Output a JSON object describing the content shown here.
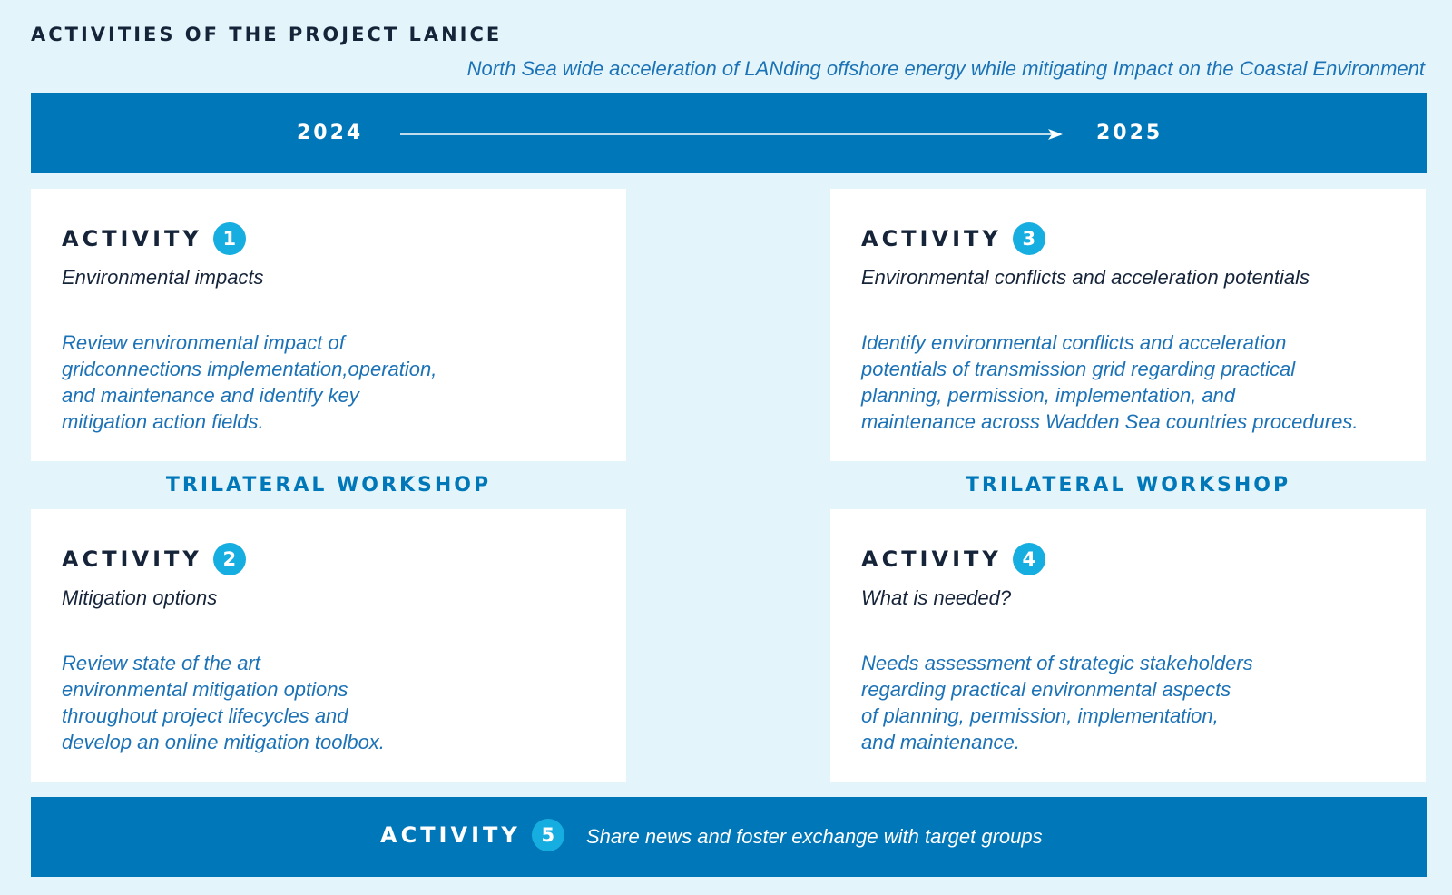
{
  "header": {
    "title": "ACTIVITIES OF THE PROJECT LANICE",
    "subtitle": "North Sea wide acceleration of LANding offshore energy while mitigating Impact on the Coastal Environment"
  },
  "timeline": {
    "start_year": "2024",
    "end_year": "2025"
  },
  "activities": [
    {
      "label": "ACTIVITY",
      "number": "1",
      "title": "Environmental impacts",
      "description": "Review environmental impact of\ngridconnections implementation,operation,\nand maintenance and identify key\nmitigation action fields."
    },
    {
      "label": "ACTIVITY",
      "number": "2",
      "title": "Mitigation options",
      "description": "Review state of the art\nenvironmental mitigation options\nthroughout project lifecycles and\ndevelop an online mitigation toolbox."
    },
    {
      "label": "ACTIVITY",
      "number": "3",
      "title": "Environmental conflicts and acceleration potentials",
      "description": "Identify environmental conflicts and acceleration\npotentials of transmission grid regarding practical\nplanning, permission, implementation, and\nmaintenance across Wadden Sea countries procedures."
    },
    {
      "label": "ACTIVITY",
      "number": "4",
      "title": "What is needed?",
      "description": "Needs assessment of strategic stakeholders\nregarding practical environmental aspects\nof planning, permission, implementation,\nand maintenance."
    },
    {
      "label": "ACTIVITY",
      "number": "5",
      "title": "Share news and foster exchange with target groups"
    }
  ],
  "workshops": {
    "left": "TRILATERAL WORKSHOP",
    "right": "TRILATERAL WORKSHOP"
  },
  "colors": {
    "background": "#e3f5fa",
    "primary_blue": "#0077b8",
    "badge_cyan": "#16aee1",
    "text_navy": "#16243a",
    "text_blue": "#1c72b6"
  }
}
